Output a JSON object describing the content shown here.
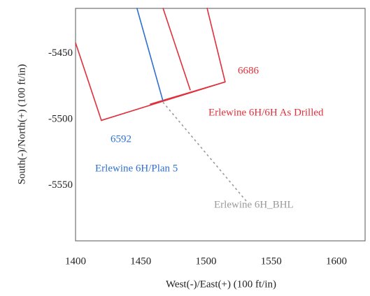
{
  "chart_data": {
    "type": "line",
    "x_label": "West(-)/East(+) (100 ft/in)",
    "y_label": "South(-)/North(+) (100 ft/in)",
    "xlim": [
      1400,
      1622
    ],
    "ylim": [
      -5592,
      -5416
    ],
    "xticks": [
      1400,
      1450,
      1500,
      1550,
      1600
    ],
    "yticks": [
      -5450,
      -5500,
      -5550
    ],
    "grid": true,
    "minor_grid": 10,
    "series": [
      {
        "name": "Erlewine 6H/6H As Drilled",
        "color": "#e0303c",
        "x": [
          1400,
          1419.8,
          1514.7,
          1500.8
        ],
        "y": [
          -5442,
          -5500.8,
          -5471.7,
          -5415.6
        ]
      },
      {
        "name": "Erlewine 6H/6H As Drilled",
        "color": "#e0303c",
        "x": [
          1467,
          1488
        ],
        "y": [
          -5415.6,
          -5478
        ]
      },
      {
        "name": "Erlewine 6H/6H As Drilled",
        "color": "#e0303c",
        "x": [
          1457,
          1514.7
        ],
        "y": [
          -5488.6,
          -5471.7
        ]
      },
      {
        "name": "Erlewine 6H/Plan 5",
        "color": "#2f6fd0",
        "x": [
          1447,
          1467
        ],
        "y": [
          -5415.6,
          -5486
        ]
      },
      {
        "name": "Erlewine 6H_BHL",
        "color": "#999999",
        "x": [
          1467,
          1531
        ],
        "y": [
          -5487,
          -5562
        ]
      }
    ],
    "annotations": [
      "6686",
      "6592"
    ]
  }
}
